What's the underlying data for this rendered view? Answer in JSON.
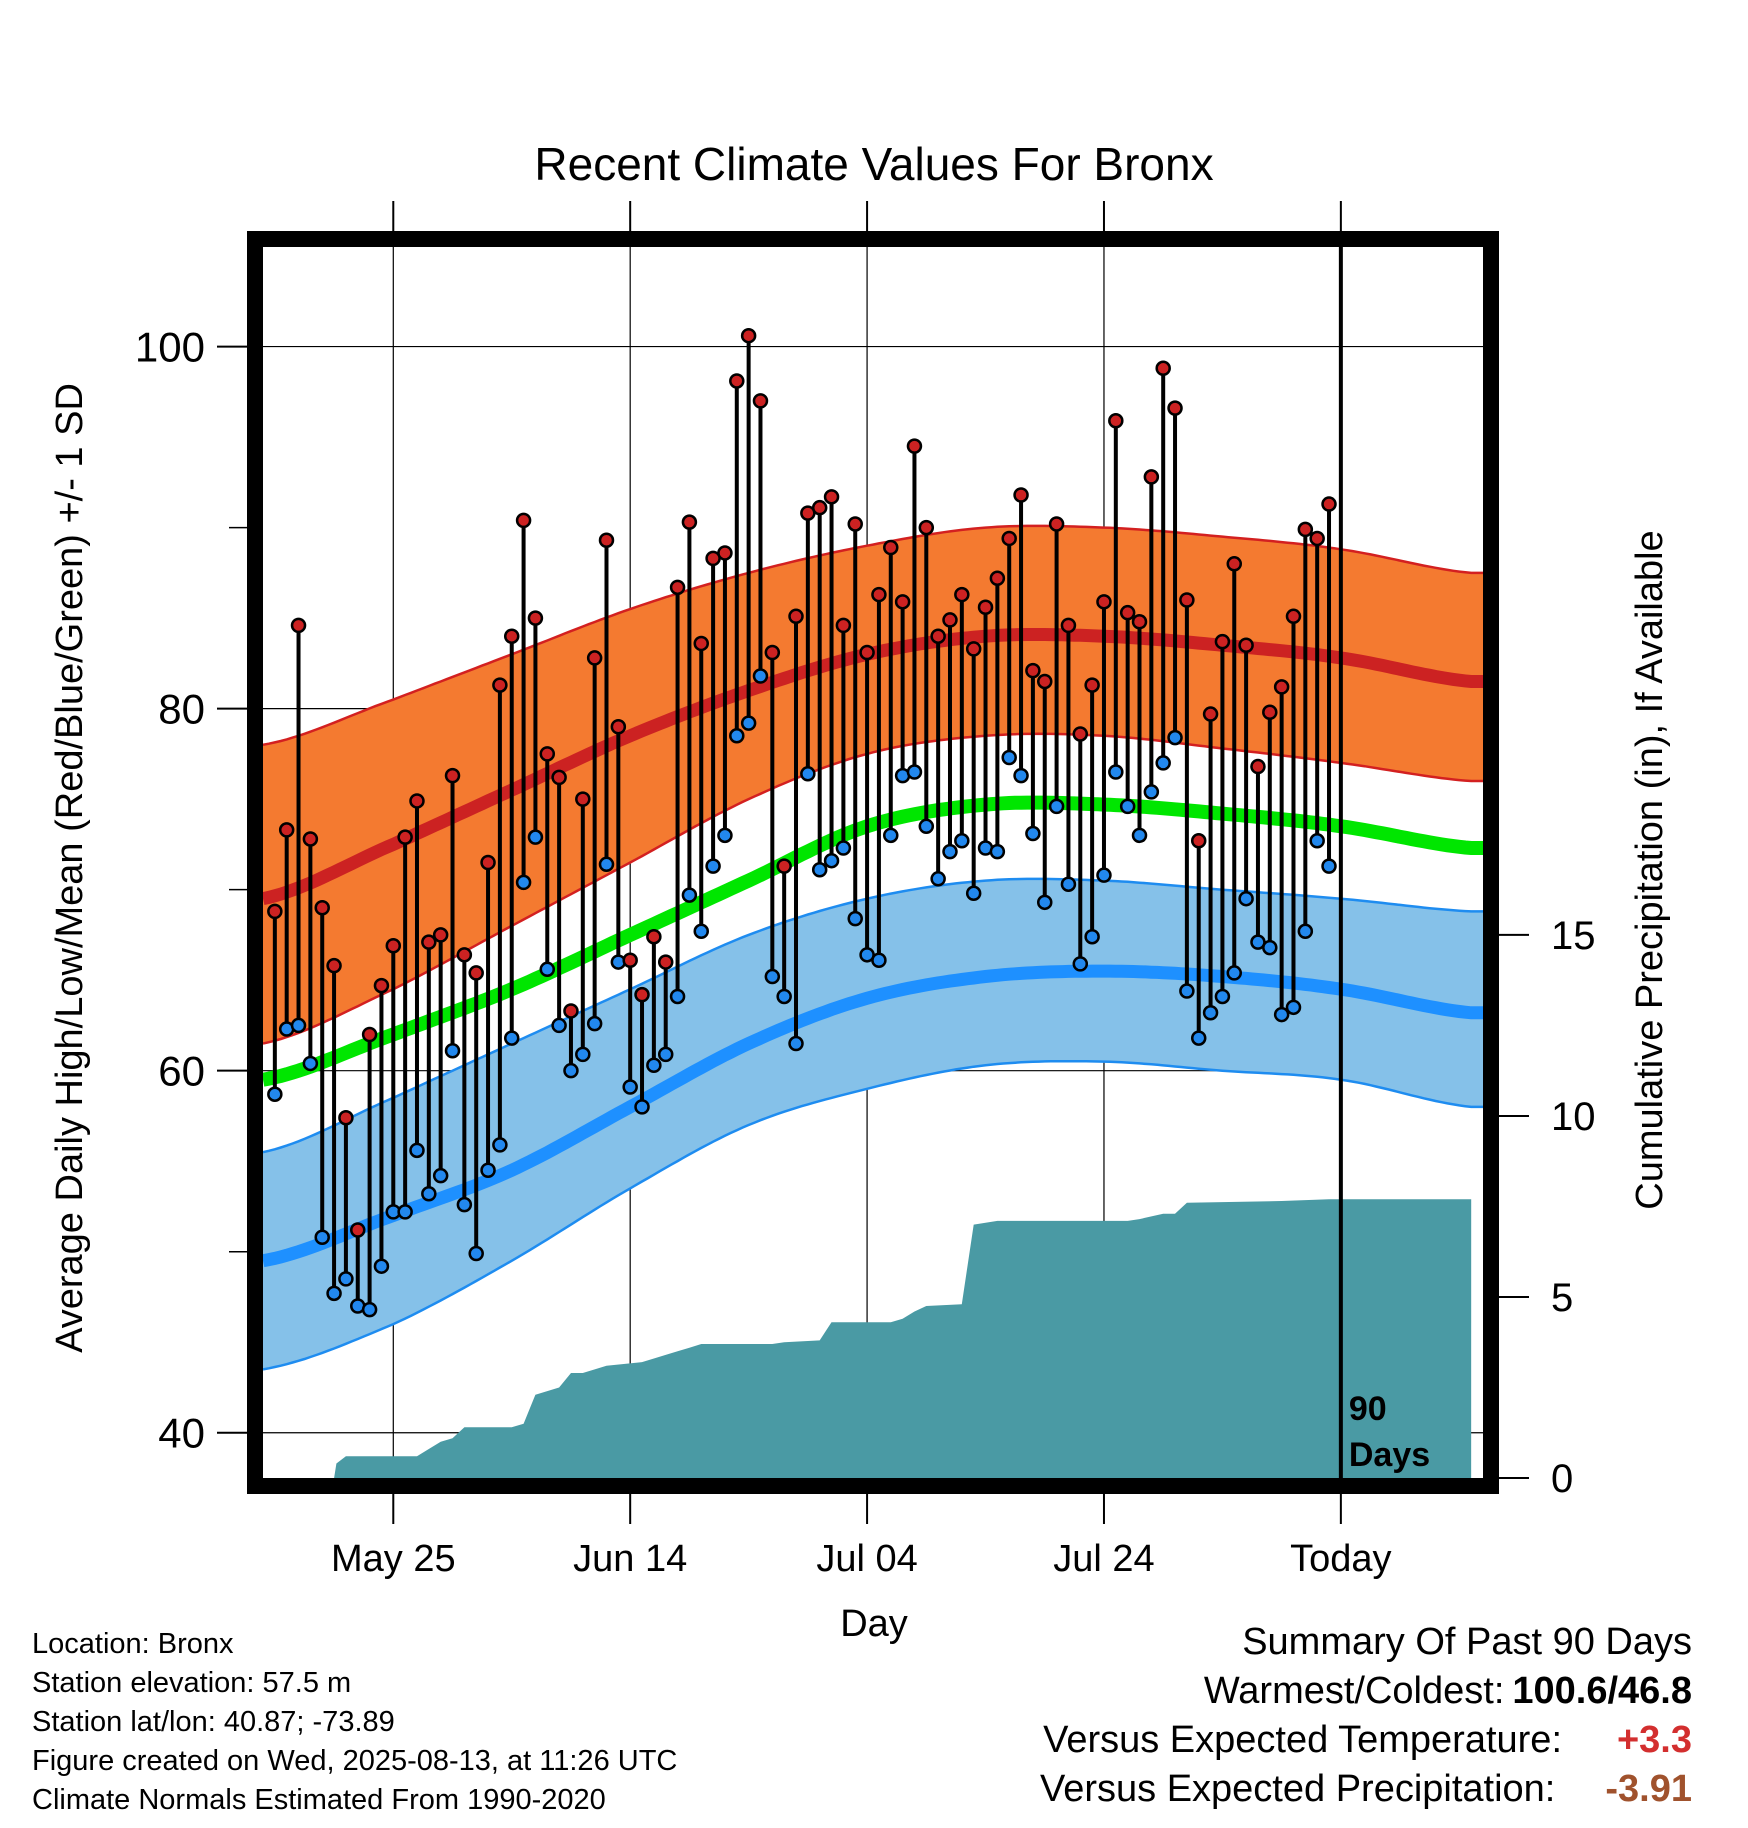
{
  "chart_data": {
    "type": "line",
    "title": "Recent Climate Values For Bronx",
    "xlabel": "Day",
    "ylabel": "Average Daily High/Low/Mean (Red/Blue/Green) +/- 1 SD",
    "y2label": "Cumulative Precipitation (in), If Available",
    "ylim": [
      37.5,
      105.5
    ],
    "y2lim": [
      0,
      34
    ],
    "yticks": [
      40,
      60,
      80,
      100
    ],
    "y2ticks": [
      0,
      5,
      10,
      15
    ],
    "xlim": [
      -1,
      102
    ],
    "xticks": [
      {
        "label": "May 25",
        "day": 10
      },
      {
        "label": "Jun 14",
        "day": 30
      },
      {
        "label": "Jul 04",
        "day": 50
      },
      {
        "label": "Jul 24",
        "day": 70
      },
      {
        "label": "Today",
        "day": 90
      }
    ],
    "grid": true,
    "today_label": "90\nDays",
    "colors": {
      "high_band": "#f47a30",
      "high_edge": "#d32020",
      "high_mean": "#cc2222",
      "low_band": "#85c1e9",
      "low_edge": "#1e8cf0",
      "low_mean": "#1e90ff",
      "mean": "#00e600",
      "precip": "#4a9aa4",
      "high_marker": "#cc2222",
      "low_marker": "#2288ee"
    },
    "normals_days": [
      -1,
      10,
      20,
      30,
      40,
      50,
      60,
      70,
      80,
      90,
      101
    ],
    "normal_high": [
      69.5,
      72.5,
      75.5,
      78.5,
      81.0,
      83.0,
      84.0,
      84.0,
      83.5,
      82.8,
      81.5
    ],
    "normal_high_upper": [
      78.0,
      80.5,
      83.0,
      85.5,
      87.5,
      89.0,
      90.0,
      90.0,
      89.5,
      88.8,
      87.5
    ],
    "normal_high_lower": [
      61.5,
      64.5,
      68.0,
      71.5,
      75.0,
      77.5,
      78.5,
      78.5,
      77.8,
      77.0,
      76.0
    ],
    "normal_mean": [
      59.5,
      62.0,
      64.5,
      67.5,
      70.5,
      73.5,
      74.7,
      74.7,
      74.2,
      73.5,
      72.3
    ],
    "normal_low": [
      49.5,
      52.0,
      54.5,
      58.0,
      61.5,
      64.0,
      65.2,
      65.5,
      65.2,
      64.5,
      63.2
    ],
    "normal_low_upper": [
      55.5,
      58.5,
      61.5,
      64.5,
      67.5,
      69.5,
      70.5,
      70.5,
      70.0,
      69.5,
      68.8
    ],
    "normal_low_lower": [
      43.5,
      46.0,
      49.5,
      53.5,
      57.0,
      59.0,
      60.3,
      60.5,
      60.0,
      59.5,
      58.0
    ],
    "daily_high": [
      68.8,
      73.3,
      84.6,
      72.8,
      69.0,
      65.8,
      57.4,
      51.2,
      62.0,
      64.7,
      66.9,
      72.9,
      74.9,
      67.1,
      67.5,
      76.3,
      66.4,
      65.4,
      71.5,
      81.3,
      84.0,
      90.4,
      85.0,
      77.5,
      76.2,
      63.3,
      75.0,
      82.8,
      89.3,
      79.0,
      66.1,
      64.2,
      67.4,
      66.0,
      86.7,
      90.3,
      83.6,
      88.3,
      88.6,
      98.1,
      100.6,
      97.0,
      83.1,
      71.3,
      85.1,
      90.8,
      91.1,
      91.7,
      84.6,
      90.2,
      83.1,
      86.3,
      88.9,
      85.9,
      94.5,
      90.0,
      84.0,
      84.9,
      86.3,
      83.3,
      85.6,
      87.2,
      89.4,
      91.8,
      82.1,
      81.5,
      90.2,
      84.6,
      78.6,
      81.3,
      85.9,
      95.9,
      85.3,
      84.8,
      92.8,
      98.8,
      96.6,
      86.0,
      72.7,
      79.7,
      83.7,
      88.0,
      83.5,
      76.8,
      79.8,
      81.2,
      85.1,
      89.9,
      89.4,
      91.3
    ],
    "daily_low": [
      58.7,
      62.3,
      62.5,
      60.4,
      50.8,
      47.7,
      48.5,
      47.0,
      46.8,
      49.2,
      52.2,
      52.2,
      55.6,
      53.2,
      54.2,
      61.1,
      52.6,
      49.9,
      54.5,
      55.9,
      61.8,
      70.4,
      72.9,
      65.6,
      62.5,
      60.0,
      60.9,
      62.6,
      71.4,
      66.0,
      59.1,
      58.0,
      60.3,
      60.9,
      64.1,
      69.7,
      67.7,
      71.3,
      73.0,
      78.5,
      79.2,
      81.8,
      65.2,
      64.1,
      61.5,
      76.4,
      71.1,
      71.6,
      72.3,
      68.4,
      66.4,
      66.1,
      73.0,
      76.3,
      76.5,
      73.5,
      70.6,
      72.1,
      72.7,
      69.8,
      72.3,
      72.1,
      77.3,
      76.3,
      73.1,
      69.3,
      74.6,
      70.3,
      65.9,
      67.4,
      70.8,
      76.5,
      74.6,
      73.0,
      75.4,
      77.0,
      78.4,
      64.4,
      61.8,
      63.2,
      64.1,
      65.4,
      69.5,
      67.1,
      66.8,
      63.1,
      63.5,
      67.7,
      72.7,
      71.3
    ],
    "precip_cumulative": [
      [
        -1,
        0
      ],
      [
        5,
        0
      ],
      [
        5.2,
        0.4
      ],
      [
        6,
        0.6
      ],
      [
        12,
        0.6
      ],
      [
        13,
        0.8
      ],
      [
        14,
        1.0
      ],
      [
        15,
        1.1
      ],
      [
        16,
        1.4
      ],
      [
        20,
        1.4
      ],
      [
        21,
        1.5
      ],
      [
        22,
        2.3
      ],
      [
        24,
        2.5
      ],
      [
        25,
        2.9
      ],
      [
        26,
        2.9
      ],
      [
        27,
        3.0
      ],
      [
        28,
        3.1
      ],
      [
        31,
        3.2
      ],
      [
        32,
        3.3
      ],
      [
        33,
        3.4
      ],
      [
        34,
        3.5
      ],
      [
        35,
        3.6
      ],
      [
        36,
        3.7
      ],
      [
        42,
        3.7
      ],
      [
        43,
        3.75
      ],
      [
        46,
        3.8
      ],
      [
        47,
        4.3
      ],
      [
        52,
        4.3
      ],
      [
        53,
        4.4
      ],
      [
        54,
        4.6
      ],
      [
        55,
        4.75
      ],
      [
        58,
        4.8
      ],
      [
        59,
        7.0
      ],
      [
        61,
        7.1
      ],
      [
        72,
        7.1
      ],
      [
        73,
        7.15
      ],
      [
        75,
        7.3
      ],
      [
        76,
        7.3
      ],
      [
        77,
        7.6
      ],
      [
        85,
        7.65
      ],
      [
        89,
        7.7
      ],
      [
        101,
        7.7
      ]
    ]
  },
  "info": {
    "location": "Location: Bronx",
    "elevation": "Station elevation: 57.5 m",
    "latlon": "Station lat/lon: 40.87; -73.89",
    "created": "Figure created on Wed, 2025-08-13, at 11:26 UTC",
    "normals": "Climate Normals Estimated From 1990-2020"
  },
  "summary": {
    "title": "Summary Of Past 90 Days",
    "warmest_label": "Warmest/Coldest:",
    "warmest_value": "100.6/46.8",
    "temp_label": "Versus Expected Temperature:",
    "temp_value": "+3.3",
    "precip_label": "Versus Expected Precipitation:",
    "precip_value": "-3.91"
  }
}
